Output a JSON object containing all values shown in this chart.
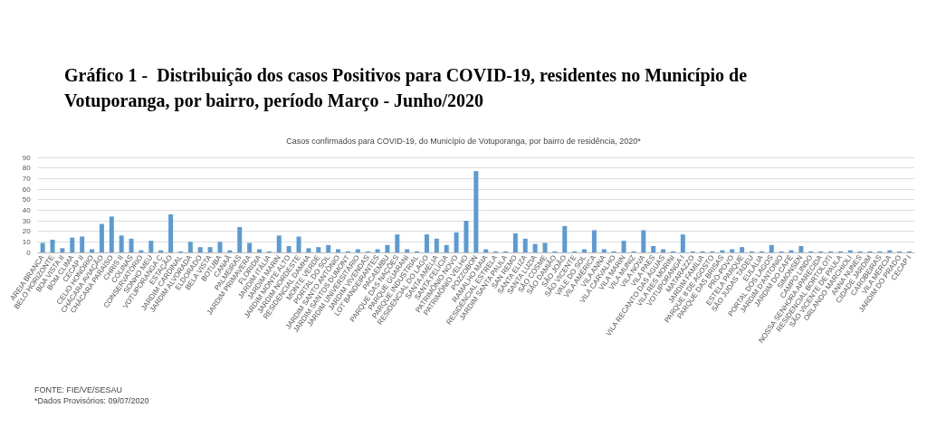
{
  "chart_data": {
    "type": "bar",
    "title": "Gráfico 1 -  Distribuição dos casos Positivos para COVID-19, residentes no Município de Votuporanga, por bairro, período Março - Junho/2020",
    "subtitle": "Casos confirmados para COVID-19, do Município de Votuporanga, por bairro de residência, 2020*",
    "categories": [
      "AREIA BRANCA",
      "BELO HORIZONTE",
      "BOA VISTA II",
      "BOM CLIMA",
      "CECAP II",
      "CELIO HONÓRIO",
      "CHÁCARA AVIAÇÃO",
      "CHÁCARA PARAÍSO",
      "CHRIS II",
      "COLINAS",
      "CONSERVATÓRIO",
      "SONHO MEU",
      "VOTUPORANGA C",
      "ESTAÇÃO",
      "JARDIM CARDINAL",
      "JARDIM ALVORADA",
      "ELDORADO",
      "BELA VISTA",
      "BOTUBA",
      "CANAÃ",
      "PALMEIRAS",
      "JARDIM PRIMAVERA",
      "FLORIDIA",
      "JARDIM ITÁLIA",
      "JARDIM MARIN",
      "JARDIM MONTE ALTO",
      "JARDIM NORDESTE",
      "RESIDENCIAL DAMHA",
      "MONTE VERDE",
      "PORTAL DO SOL",
      "JARDIM SANTO ANTÔNIO",
      "JARDIM SANTOS DUMONT",
      "JARDIM UNIVERSITÁRIO",
      "JARDIM VIVENDAS",
      "LOT BANDEIRANTES",
      "PACAEMBU",
      "PARQUE DAS NAÇÕES",
      "PARQUE GUARANI",
      "PARQUE INDUSTRIAL",
      "RESIDENCIAL DO LAGO",
      "SANTA AMÉLIA",
      "SANTA FELÍCIA",
      "PATRIMÔNIO NOVO",
      "PATRIMÔNIO VELHO",
      "POZZOBON",
      "RAMALHO MAIA",
      "RESIDENCIAL ESTRELA",
      "JARDIM SANTA PAULA",
      "SAN REMO",
      "SANTA ELIZA",
      "SANTA LUZIA",
      "SÃO COSME",
      "SÃO DAMIÃO",
      "SÃO JOÃO",
      "SÃO VICENTE",
      "VALE DO SOL",
      "VILA AMÉRICA",
      "VILA ANNA",
      "VILA CARVALHO",
      "VILA MARIN",
      "VILA MUNIZ",
      "VILA NOVA",
      "VILA PAES",
      "VILA RECANTO DAS ÁGUAS",
      "VILA RES MORINI",
      "VOTUPORANGA I",
      "MATARAZZO",
      "JARDIM FAMÍLIA",
      "PARQUE 8 DE AGOSTO",
      "PARQUE DAS BRISAS",
      "PRÓ-POVO",
      "ESTELA PARQUE",
      "SÃO JUDAS TADEU",
      "EULÁLIA",
      "PORTAL DOS LAGOS",
      "JARDIM D'ANTONIO",
      "JARDIM DO CAFÉ",
      "SIMONSEN",
      "CAMPO LINDO",
      "NOSSA SENHORA APARECIDA",
      "RESIDENCIAL BORTOLOTI",
      "SÃO VICENTE DE PAULA",
      "ORLANDO MARCHIOLI",
      "ANNA NUNES",
      "CIDADE JARDIM",
      "CAROBEIRAS",
      "VILA MÉRCIA",
      "JARDIM DO PRADO",
      "CECAP I"
    ],
    "values": [
      9,
      12,
      4,
      14,
      15,
      3,
      27,
      34,
      16,
      13,
      2,
      11,
      2,
      36,
      1,
      10,
      5,
      5,
      10,
      2,
      24,
      9,
      3,
      1,
      16,
      6,
      15,
      4,
      5,
      7,
      3,
      1,
      3,
      1,
      3,
      7,
      17,
      3,
      1,
      17,
      13,
      7,
      19,
      30,
      77,
      3,
      1,
      1,
      18,
      13,
      8,
      9,
      1,
      25,
      1,
      3,
      21,
      3,
      1,
      11,
      1,
      21,
      6,
      3,
      1,
      17,
      1,
      1,
      1,
      2,
      3,
      5,
      1,
      1,
      7,
      1,
      2,
      6,
      1,
      1,
      1,
      1,
      2,
      1,
      1,
      1,
      2,
      1,
      1
    ],
    "color": "#5b9bd5",
    "ylim": [
      0,
      90
    ],
    "yticks": [
      0,
      10,
      20,
      30,
      40,
      50,
      60,
      70,
      80,
      90
    ],
    "grid": "y",
    "annotations": [
      "FONTE: FIE/VE/SESAU",
      "*Dados Provisórios: 09/07/2020"
    ]
  }
}
